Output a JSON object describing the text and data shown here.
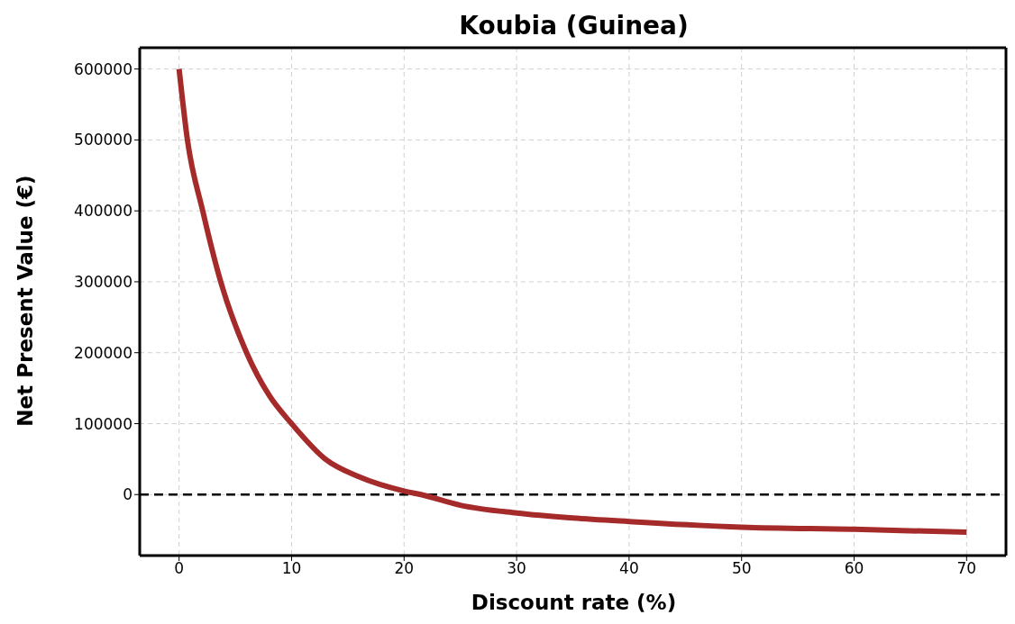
{
  "chart_data": {
    "type": "line",
    "title": "Koubia (Guinea)",
    "xlabel": "Discount rate (%)",
    "ylabel": "Net Present Value (€)",
    "x": [
      0,
      0.74,
      2.1,
      3.7,
      6,
      8,
      10,
      13,
      16,
      20,
      21.5,
      25,
      30,
      35,
      40,
      50,
      60,
      70
    ],
    "series": [
      {
        "color": "#a52a2a",
        "values": [
          600000,
          500000,
          400000,
          300000,
          200000,
          140000,
          100000,
          50000,
          25000,
          5000,
          0,
          -15000,
          -26000,
          -33000,
          -38000,
          -46000,
          -49000,
          -53000
        ]
      }
    ],
    "xlim": [
      -3.5,
      73.5
    ],
    "xticks": [
      0,
      10,
      20,
      30,
      40,
      50,
      60,
      70
    ],
    "ylim": [
      -86000,
      630000
    ],
    "yticks": [
      0,
      100000,
      200000,
      300000,
      400000,
      500000,
      600000
    ],
    "ref_lines": [
      {
        "axis": "y",
        "value": 0,
        "color": "#000000",
        "line_style": "dashed"
      }
    ],
    "grid": true,
    "marker": "none",
    "line_style": "solid",
    "legend": false
  }
}
